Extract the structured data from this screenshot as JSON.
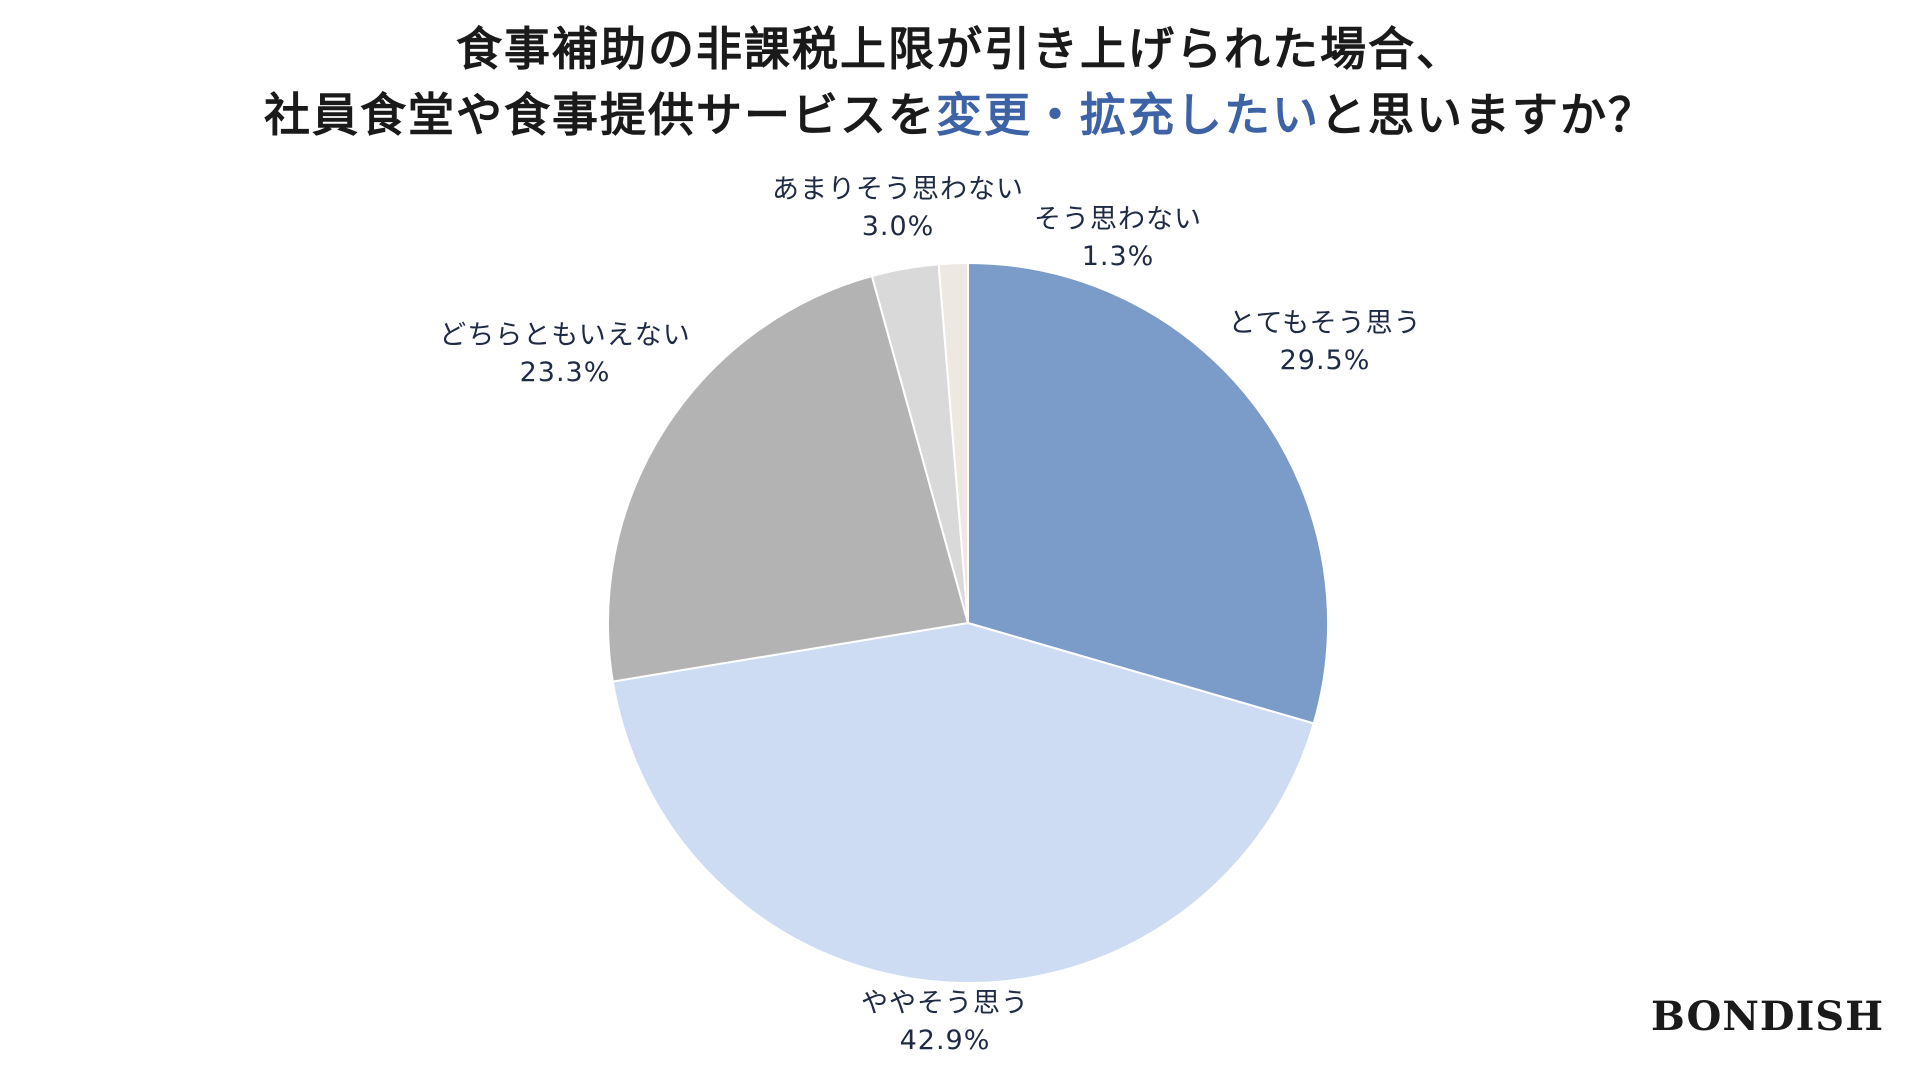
{
  "title": {
    "line1": "食事補助の非課税上限が引き上げられた場合、",
    "line2_prefix": "社員食堂や食事提供サービスを",
    "line2_highlight": "変更・拡充したい",
    "line2_suffix": "と思いますか？"
  },
  "brand": "BONDISH",
  "colors": {
    "title_highlight": "#3d63a6",
    "label_text": "#1f2a44"
  },
  "chart_data": {
    "type": "pie",
    "start_angle_deg": 0,
    "direction": "clockwise",
    "legend": "none",
    "slices": [
      {
        "label": "とてもそう思う",
        "value": 29.5,
        "display": "29.5%",
        "color": "#7b9cc9"
      },
      {
        "label": "ややそう思う",
        "value": 42.9,
        "display": "42.9%",
        "color": "#cddcf2"
      },
      {
        "label": "どちらともいえない",
        "value": 23.3,
        "display": "23.3%",
        "color": "#b3b3b3"
      },
      {
        "label": "あまりそう思わない",
        "value": 3.0,
        "display": "3.0%",
        "color": "#d9d9d9"
      },
      {
        "label": "そう思わない",
        "value": 1.3,
        "display": "1.3%",
        "color": "#ede8e1"
      }
    ]
  }
}
